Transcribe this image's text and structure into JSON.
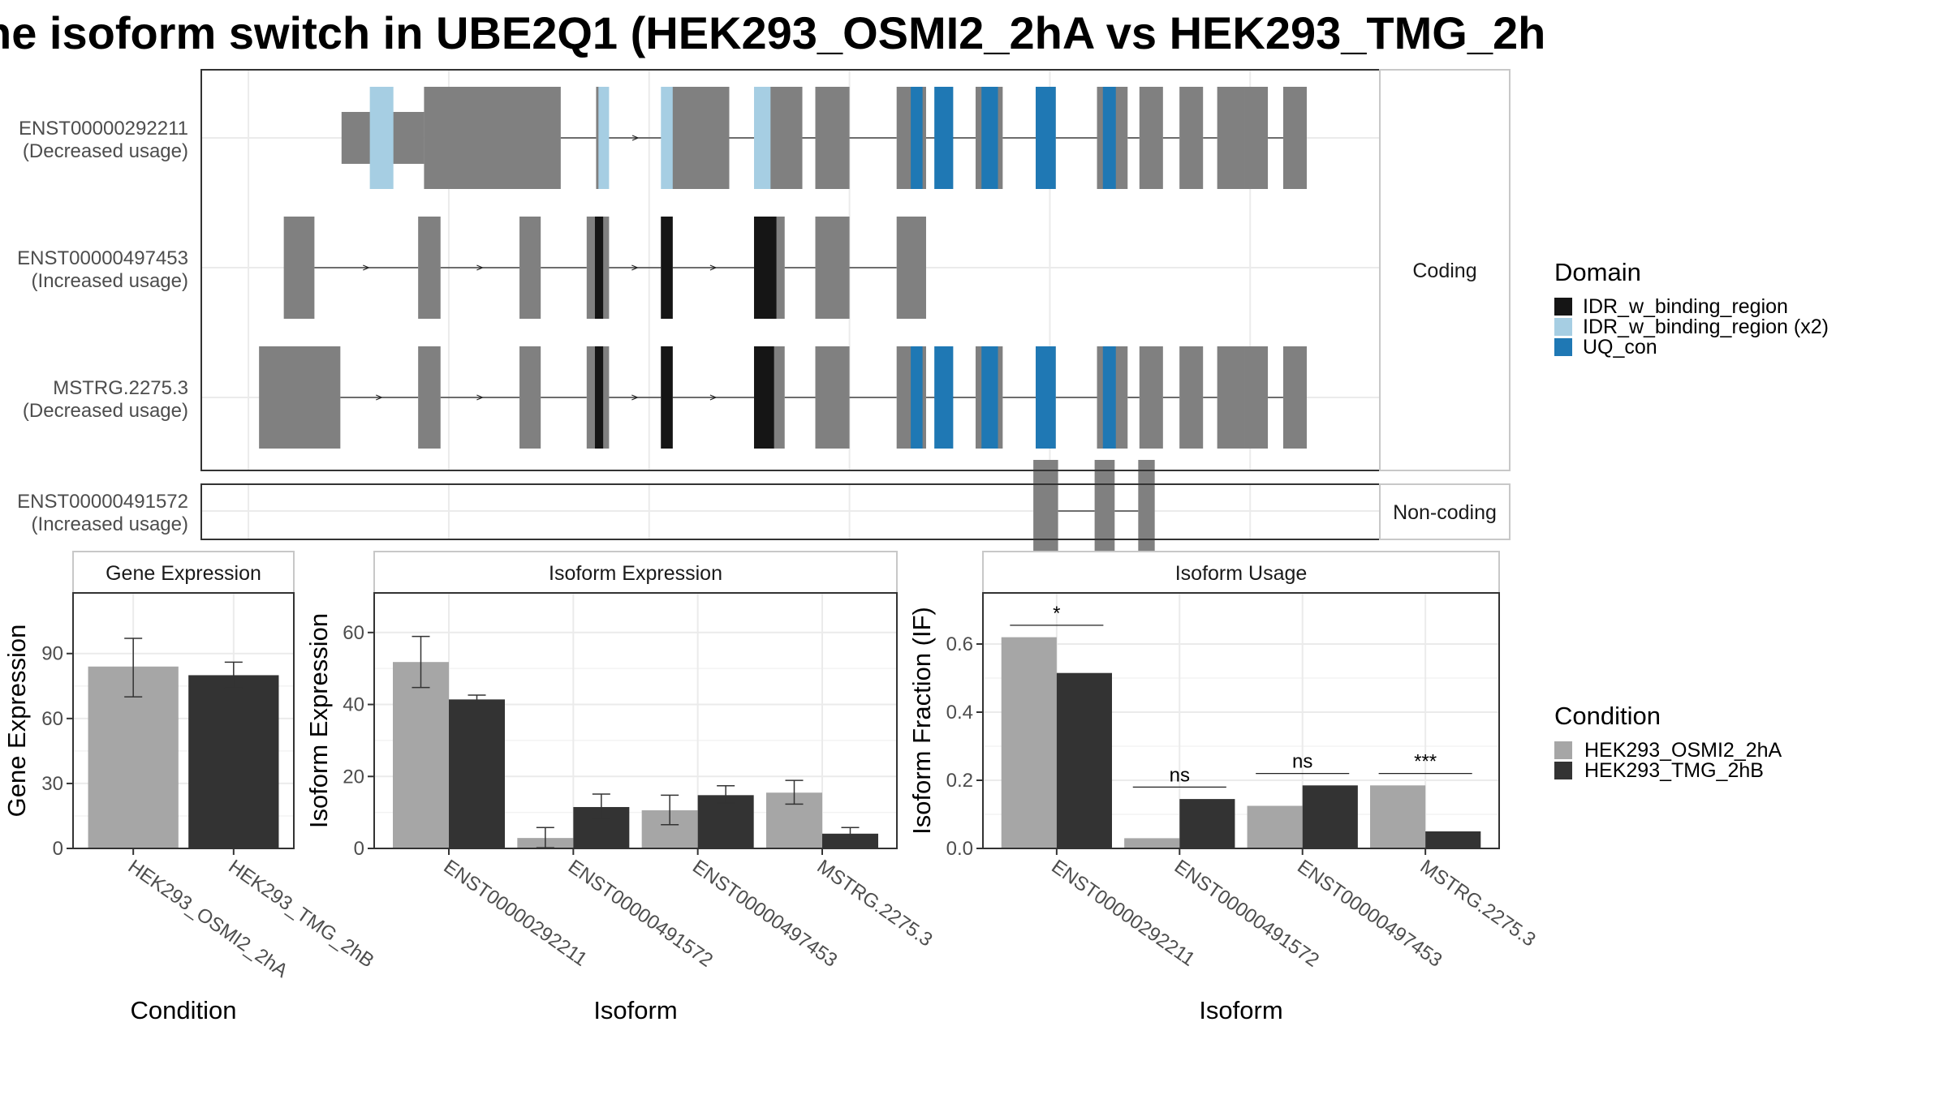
{
  "title": "he isoform switch in UBE2Q1 (HEK293_OSMI2_2hA vs HEK293_TMG_2h",
  "colors": {
    "exon": "#808080",
    "panel_border": "#333333",
    "strip_border": "#c8c8c8",
    "grid": "#ebebeb",
    "cond_a": "#a6a6a6",
    "cond_b": "#333333"
  },
  "chart_data": [
    {
      "type": "gene-structure",
      "title": "",
      "facets": [
        "Coding",
        "Non-coding"
      ],
      "transcripts": [
        {
          "id": "ENST00000292211",
          "status": "(Decreased usage)",
          "facet": "Coding",
          "exons": [
            [
              0.119,
              0.189
            ],
            [
              0.189,
              0.305
            ],
            [
              0.335,
              0.34
            ],
            [
              0.397,
              0.448
            ],
            [
              0.474,
              0.51
            ],
            [
              0.521,
              0.55
            ],
            [
              0.59,
              0.615
            ],
            [
              0.657,
              0.68
            ],
            [
              0.708,
              0.725
            ],
            [
              0.76,
              0.786
            ],
            [
              0.796,
              0.816
            ],
            [
              0.83,
              0.85
            ],
            [
              0.862,
              0.885
            ],
            [
              0.885,
              0.905
            ],
            [
              0.918,
              0.938
            ]
          ],
          "domains": [
            [
              0.143,
              0.163,
              "IDR_w_binding_region (x2)"
            ],
            [
              0.337,
              0.346,
              "IDR_w_binding_region (x2)"
            ],
            [
              0.39,
              0.4,
              "IDR_w_binding_region (x2)"
            ],
            [
              0.469,
              0.483,
              "IDR_w_binding_region (x2)"
            ],
            [
              0.602,
              0.612,
              "UQ_con"
            ],
            [
              0.622,
              0.638,
              "UQ_con"
            ],
            [
              0.662,
              0.676,
              "UQ_con"
            ],
            [
              0.708,
              0.725,
              "UQ_con"
            ],
            [
              0.765,
              0.776,
              "UQ_con"
            ]
          ]
        },
        {
          "id": "ENST00000497453",
          "status": "(Increased usage)",
          "facet": "Coding",
          "exons": [
            [
              0.07,
              0.096
            ],
            [
              0.184,
              0.203
            ],
            [
              0.27,
              0.288
            ],
            [
              0.327,
              0.346
            ],
            [
              0.39,
              0.4
            ],
            [
              0.469,
              0.495
            ],
            [
              0.521,
              0.55
            ],
            [
              0.59,
              0.615
            ]
          ],
          "domains": [
            [
              0.334,
              0.341,
              "IDR_w_binding_region"
            ],
            [
              0.39,
              0.4,
              "IDR_w_binding_region"
            ],
            [
              0.469,
              0.488,
              "IDR_w_binding_region"
            ]
          ]
        },
        {
          "id": "MSTRG.2275.3",
          "status": "(Decreased usage)",
          "facet": "Coding",
          "exons": [
            [
              0.049,
              0.118
            ],
            [
              0.184,
              0.203
            ],
            [
              0.27,
              0.288
            ],
            [
              0.327,
              0.346
            ],
            [
              0.39,
              0.4
            ],
            [
              0.469,
              0.495
            ],
            [
              0.521,
              0.55
            ],
            [
              0.59,
              0.615
            ],
            [
              0.657,
              0.68
            ],
            [
              0.708,
              0.725
            ],
            [
              0.76,
              0.786
            ],
            [
              0.796,
              0.816
            ],
            [
              0.83,
              0.85
            ],
            [
              0.862,
              0.885
            ],
            [
              0.885,
              0.905
            ],
            [
              0.918,
              0.938
            ]
          ],
          "domains": [
            [
              0.334,
              0.341,
              "IDR_w_binding_region"
            ],
            [
              0.39,
              0.4,
              "IDR_w_binding_region"
            ],
            [
              0.469,
              0.486,
              "IDR_w_binding_region"
            ],
            [
              0.602,
              0.612,
              "UQ_con"
            ],
            [
              0.622,
              0.638,
              "UQ_con"
            ],
            [
              0.662,
              0.676,
              "UQ_con"
            ],
            [
              0.708,
              0.725,
              "UQ_con"
            ],
            [
              0.765,
              0.776,
              "UQ_con"
            ]
          ]
        },
        {
          "id": "ENST00000491572",
          "status": "(Increased usage)",
          "facet": "Non-coding",
          "exons": [
            [
              0.706,
              0.727
            ],
            [
              0.758,
              0.775
            ],
            [
              0.795,
              0.809
            ]
          ],
          "domains": []
        }
      ],
      "legend": {
        "title": "Domain",
        "items": [
          {
            "label": "IDR_w_binding_region",
            "color": "#151515"
          },
          {
            "label": "IDR_w_binding_region (x2)",
            "color": "#a6cee3"
          },
          {
            "label": "UQ_con",
            "color": "#1f78b4"
          }
        ]
      }
    },
    {
      "type": "bar",
      "title": "Gene Expression",
      "xlabel": "Condition",
      "ylabel": "Gene Expression",
      "ylim": [
        0,
        118
      ],
      "yticks": [
        0,
        30,
        60,
        90
      ],
      "categories": [
        "HEK293_OSMI2_2hA",
        "HEK293_TMG_2hB"
      ],
      "values": [
        84,
        80
      ],
      "errors": [
        [
          70,
          97
        ],
        [
          74,
          86
        ]
      ]
    },
    {
      "type": "bar",
      "title": "Isoform Expression",
      "xlabel": "Isoform",
      "ylabel": "Isoform Expression",
      "ylim": [
        0,
        71
      ],
      "yticks": [
        0,
        20,
        40,
        60
      ],
      "categories": [
        "ENST00000292211",
        "ENST00000491572",
        "ENST00000497453",
        "MSTRG.2275.3"
      ],
      "series": [
        {
          "values": [
            51.8,
            2.9,
            10.6,
            15.5
          ],
          "errors": [
            [
              44.7,
              58.9
            ],
            [
              0.2,
              5.8
            ],
            [
              6.6,
              14.8
            ],
            [
              12.3,
              18.9
            ]
          ]
        },
        {
          "values": [
            41.4,
            11.5,
            14.8,
            4.1
          ],
          "errors": [
            [
              40.4,
              42.6
            ],
            [
              8.3,
              15.1
            ],
            [
              12.6,
              17.4
            ],
            [
              2.6,
              5.8
            ]
          ]
        }
      ]
    },
    {
      "type": "bar",
      "title": "Isoform Usage",
      "xlabel": "Isoform",
      "ylabel": "Isoform Fraction (IF)",
      "ylim": [
        0,
        0.75
      ],
      "yticks": [
        0.0,
        0.2,
        0.4,
        0.6
      ],
      "ytick_labels": [
        "0.0",
        "0.2",
        "0.4",
        "0.6"
      ],
      "categories": [
        "ENST00000292211",
        "ENST00000491572",
        "ENST00000497453",
        "MSTRG.2275.3"
      ],
      "series": [
        {
          "values": [
            0.62,
            0.03,
            0.125,
            0.185
          ]
        },
        {
          "values": [
            0.515,
            0.145,
            0.185,
            0.05
          ]
        }
      ],
      "significance": [
        {
          "label": "*",
          "y": 0.655
        },
        {
          "label": "ns",
          "y": 0.18
        },
        {
          "label": "ns",
          "y": 0.22
        },
        {
          "label": "***",
          "y": 0.22
        }
      ],
      "legend": {
        "title": "Condition",
        "items": [
          {
            "label": "HEK293_OSMI2_2hA",
            "color": "#a6a6a6"
          },
          {
            "label": "HEK293_TMG_2hB",
            "color": "#333333"
          }
        ]
      }
    }
  ]
}
